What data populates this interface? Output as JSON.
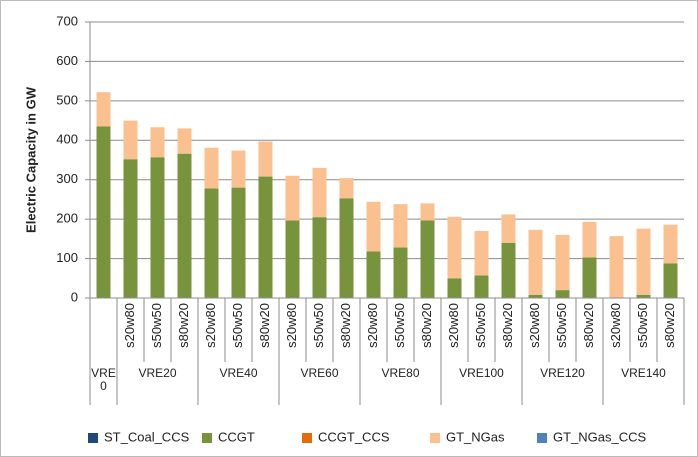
{
  "chart_data": {
    "type": "stacked_bar",
    "y_label": "Electric Capacity in GW",
    "groups": [
      {
        "name": "VRE0",
        "categories": [
          null
        ]
      },
      {
        "name": "VRE20",
        "categories": [
          "s20w80",
          "s50w50",
          "s80w20"
        ]
      },
      {
        "name": "VRE40",
        "categories": [
          "s20w80",
          "s50w50",
          "s80w20"
        ]
      },
      {
        "name": "VRE60",
        "categories": [
          "s20w80",
          "s50w50",
          "s80w20"
        ]
      },
      {
        "name": "VRE80",
        "categories": [
          "s20w80",
          "s50w50",
          "s80w20"
        ]
      },
      {
        "name": "VRE100",
        "categories": [
          "s20w80",
          "s50w50",
          "s80w20"
        ]
      },
      {
        "name": "VRE120",
        "categories": [
          "s20w80",
          "s50w50",
          "s80w20"
        ]
      },
      {
        "name": "VRE140",
        "categories": [
          "s20w80",
          "s50w50",
          "s80w20"
        ]
      }
    ],
    "series": [
      {
        "name": "ST_Coal_CCS",
        "color": "#1f497d",
        "values": [
          0,
          0,
          0,
          0,
          0,
          0,
          0,
          0,
          0,
          0,
          0,
          0,
          0,
          0,
          0,
          0,
          0,
          0,
          0,
          0,
          0,
          0
        ]
      },
      {
        "name": "CCGT",
        "color": "#77933c",
        "values": [
          435,
          352,
          357,
          366,
          278,
          280,
          308,
          197,
          205,
          253,
          118,
          128,
          197,
          50,
          57,
          140,
          8,
          20,
          103,
          0,
          8,
          88
        ]
      },
      {
        "name": "CCGT_CCS",
        "color": "#e46c0a",
        "values": [
          0,
          0,
          0,
          0,
          0,
          0,
          0,
          0,
          0,
          0,
          0,
          0,
          0,
          0,
          0,
          0,
          0,
          0,
          0,
          0,
          0,
          0
        ]
      },
      {
        "name": "GT_NGas",
        "color": "#fac090",
        "values": [
          87,
          98,
          76,
          64,
          103,
          94,
          89,
          113,
          125,
          51,
          126,
          110,
          43,
          156,
          113,
          72,
          165,
          140,
          90,
          157,
          168,
          98
        ]
      },
      {
        "name": "GT_NGas_CCS",
        "color": "#4f81bd",
        "values": [
          0,
          0,
          0,
          0,
          0,
          0,
          0,
          0,
          0,
          0,
          0,
          0,
          0,
          0,
          0,
          0,
          0,
          0,
          0,
          0,
          0,
          0
        ]
      }
    ],
    "ylim": [
      0,
      700
    ],
    "yticks": [
      0,
      100,
      200,
      300,
      400,
      500,
      600,
      700
    ],
    "grid": true,
    "legend": "bottom"
  }
}
